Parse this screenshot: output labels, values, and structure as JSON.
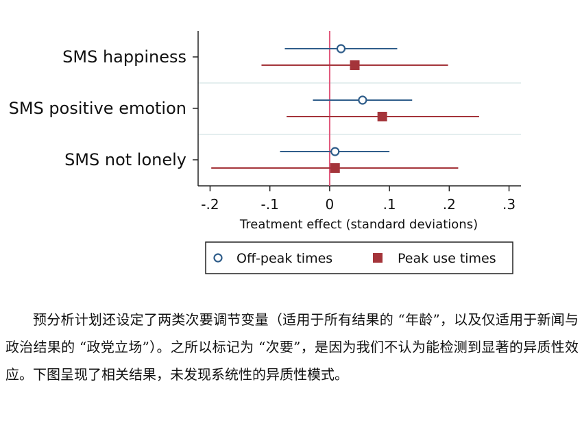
{
  "chart_data": {
    "type": "scatter",
    "subtype": "coefficient plot with confidence intervals",
    "xlabel": "Treatment effect (standard deviations)",
    "xlim": [
      -0.22,
      0.32
    ],
    "xticks": [
      -0.2,
      -0.1,
      0,
      0.1,
      0.2,
      0.3
    ],
    "xtick_labels": [
      "-.2",
      "-.1",
      "0",
      ".1",
      ".2",
      ".3"
    ],
    "reference_line": 0,
    "categories": [
      "SMS happiness",
      "SMS positive emotion",
      "SMS not lonely"
    ],
    "series": [
      {
        "name": "Off-peak times",
        "marker": "hollow-circle",
        "color": "#2f5d8a",
        "estimates": [
          0.019,
          0.055,
          0.009
        ],
        "ci_low": [
          -0.075,
          -0.028,
          -0.083
        ],
        "ci_high": [
          0.113,
          0.138,
          0.1
        ]
      },
      {
        "name": "Peak use times",
        "marker": "filled-square",
        "color": "#a4343a",
        "estimates": [
          0.042,
          0.088,
          0.009
        ],
        "ci_low": [
          -0.114,
          -0.072,
          -0.198
        ],
        "ci_high": [
          0.198,
          0.25,
          0.215
        ]
      }
    ],
    "legend": {
      "position": "bottom"
    }
  },
  "colors": {
    "reference_line": "#e0567a",
    "axis": "#222222",
    "grid": "#dce8ea"
  },
  "paragraph": "预分析计划还设定了两类次要调节变量（适用于所有结果的 “年龄”，以及仅适用于新闻与政治结果的 “政党立场”）。之所以标记为 “次要”，是因为我们不认为能检测到显著的异质性效应。下图呈现了相关结果，未发现系统性的异质性模式。"
}
